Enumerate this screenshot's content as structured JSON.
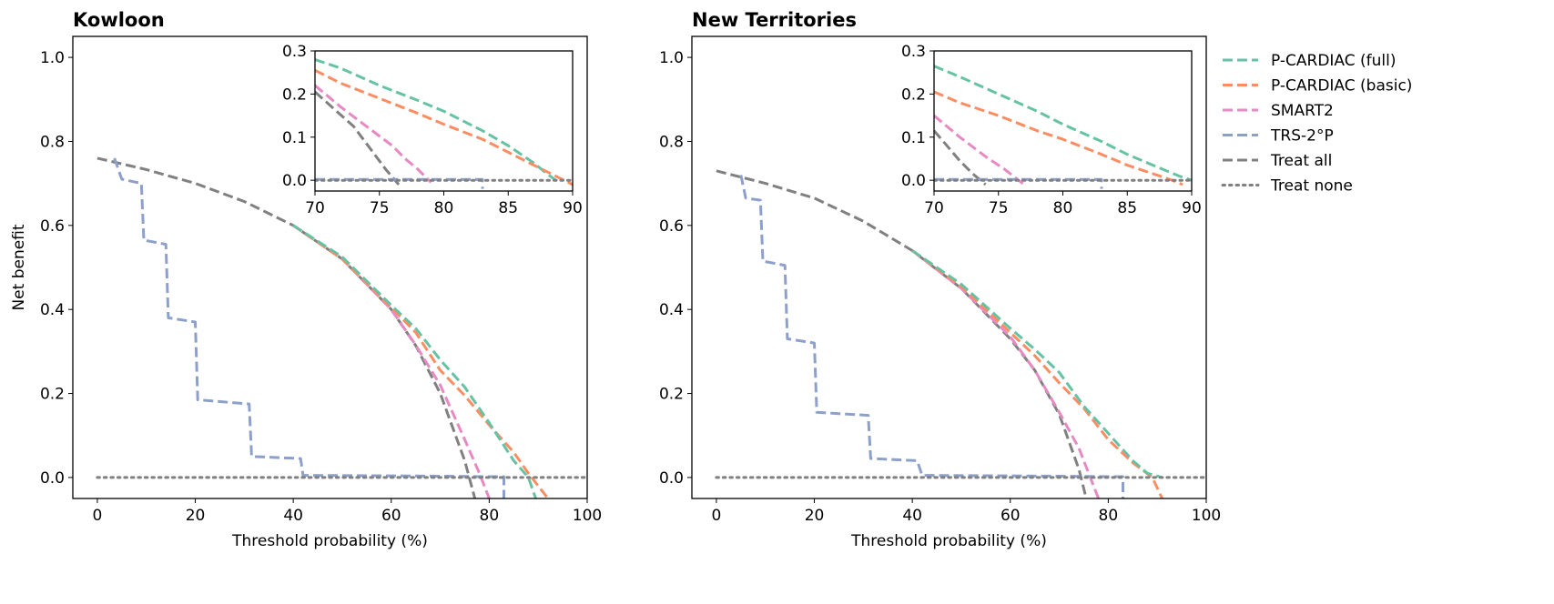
{
  "colors": {
    "p_cardiac_full": "#66c2a5",
    "p_cardiac_basic": "#fc8d62",
    "smart2": "#e78ac3",
    "trs": "#8da0cb",
    "treat_all": "#808080",
    "treat_none": "#808080"
  },
  "legend": {
    "placement": "right, outside, top",
    "items": [
      {
        "key": "p_cardiac_full",
        "label": "P-CARDIAC (full)",
        "style": "dashed"
      },
      {
        "key": "p_cardiac_basic",
        "label": "P-CARDIAC (basic)",
        "style": "dashed"
      },
      {
        "key": "smart2",
        "label": "SMART2",
        "style": "dashed"
      },
      {
        "key": "trs",
        "label": "TRS-2°P",
        "style": "dashed"
      },
      {
        "key": "treat_all",
        "label": "Treat all",
        "style": "dashed"
      },
      {
        "key": "treat_none",
        "label": "Treat none",
        "style": "dotted"
      }
    ]
  },
  "chart_data": [
    {
      "type": "line",
      "title": "Kowloon",
      "xlabel": "Threshold probability (%)",
      "ylabel": "Net benefit",
      "xlim": [
        -5,
        100
      ],
      "ylim": [
        -0.05,
        1.05
      ],
      "xticks": [
        0,
        20,
        40,
        60,
        80,
        100
      ],
      "yticks": [
        0.0,
        0.2,
        0.4,
        0.6,
        0.8,
        1.0
      ],
      "grid": false,
      "series": [
        {
          "key": "treat_all",
          "name": "Treat all",
          "x": [
            0,
            10,
            20,
            30,
            40,
            50,
            60,
            65,
            70,
            75,
            78
          ],
          "y": [
            0.76,
            0.733,
            0.7,
            0.657,
            0.6,
            0.52,
            0.4,
            0.314,
            0.2,
            0.04,
            -0.09
          ]
        },
        {
          "key": "smart2",
          "name": "SMART2",
          "x": [
            40,
            50,
            60,
            65,
            70,
            75,
            78,
            80
          ],
          "y": [
            0.6,
            0.52,
            0.4,
            0.315,
            0.22,
            0.09,
            0.01,
            -0.05
          ]
        },
        {
          "key": "p_cardiac_basic",
          "name": "P-CARDIAC (basic)",
          "x": [
            40,
            50,
            60,
            65,
            70,
            75,
            80,
            85,
            88,
            92
          ],
          "y": [
            0.6,
            0.52,
            0.405,
            0.345,
            0.255,
            0.195,
            0.125,
            0.06,
            0.01,
            -0.05
          ]
        },
        {
          "key": "p_cardiac_full",
          "name": "P-CARDIAC (full)",
          "x": [
            40,
            50,
            60,
            65,
            70,
            75,
            80,
            85,
            88,
            89.5
          ],
          "y": [
            0.6,
            0.525,
            0.41,
            0.355,
            0.28,
            0.215,
            0.13,
            0.04,
            0.0,
            -0.05
          ]
        },
        {
          "key": "trs",
          "name": "TRS-2°P",
          "x": [
            3.5,
            5,
            9,
            9.5,
            14,
            14.5,
            20,
            20.5,
            31,
            31.5,
            41.5,
            42,
            60,
            70,
            80,
            83,
            83,
            83
          ],
          "y": [
            0.76,
            0.71,
            0.7,
            0.565,
            0.555,
            0.38,
            0.37,
            0.185,
            0.175,
            0.05,
            0.045,
            0.005,
            0.004,
            0.003,
            0.002,
            0.002,
            0.0,
            -0.05
          ]
        },
        {
          "key": "treat_none",
          "name": "Treat none",
          "x": [
            0,
            100
          ],
          "y": [
            0,
            0
          ]
        }
      ],
      "inset": {
        "xlim": [
          70,
          90
        ],
        "ylim": [
          -0.025,
          0.3
        ],
        "xticks": [
          70,
          75,
          80,
          85,
          90
        ],
        "yticks": [
          0.0,
          0.1,
          0.2,
          0.3
        ],
        "series": [
          {
            "key": "p_cardiac_full",
            "x": [
              70,
              72,
              75,
              78,
              80,
              83,
              85,
              87,
              88,
              88.7
            ],
            "y": [
              0.28,
              0.26,
              0.22,
              0.185,
              0.16,
              0.115,
              0.08,
              0.04,
              0.015,
              0.0
            ]
          },
          {
            "key": "p_cardiac_basic",
            "x": [
              70,
              72,
              75,
              78,
              80,
              83,
              85,
              87,
              89,
              90
            ],
            "y": [
              0.255,
              0.225,
              0.19,
              0.155,
              0.13,
              0.095,
              0.065,
              0.035,
              0.005,
              -0.01
            ]
          },
          {
            "key": "smart2",
            "x": [
              70,
              72,
              74,
              76,
              77,
              78,
              79
            ],
            "y": [
              0.22,
              0.17,
              0.125,
              0.08,
              0.05,
              0.025,
              -0.005
            ]
          },
          {
            "key": "treat_all",
            "x": [
              70,
              71.5,
              73,
              74.5,
              75.5,
              76.5
            ],
            "y": [
              0.205,
              0.165,
              0.125,
              0.065,
              0.025,
              -0.01
            ]
          },
          {
            "key": "trs",
            "x": [
              70,
              83,
              83
            ],
            "y": [
              0.002,
              0.002,
              -0.02
            ]
          },
          {
            "key": "treat_none",
            "x": [
              70,
              90
            ],
            "y": [
              0,
              0
            ]
          }
        ]
      }
    },
    {
      "type": "line",
      "title": "New Territories",
      "xlabel": "Threshold probability (%)",
      "ylabel": "",
      "xlim": [
        -5,
        100
      ],
      "ylim": [
        -0.05,
        1.05
      ],
      "xticks": [
        0,
        20,
        40,
        60,
        80,
        100
      ],
      "yticks": [
        0.0,
        0.2,
        0.4,
        0.6,
        0.8,
        1.0
      ],
      "grid": false,
      "series": [
        {
          "key": "treat_all",
          "name": "Treat all",
          "x": [
            0,
            10,
            20,
            30,
            40,
            50,
            60,
            65,
            70,
            74,
            75.5
          ],
          "y": [
            0.73,
            0.7,
            0.665,
            0.61,
            0.54,
            0.45,
            0.33,
            0.255,
            0.15,
            0.02,
            -0.05
          ]
        },
        {
          "key": "smart2",
          "name": "SMART2",
          "x": [
            40,
            50,
            60,
            65,
            70,
            74,
            78
          ],
          "y": [
            0.54,
            0.45,
            0.335,
            0.255,
            0.155,
            0.07,
            -0.05
          ]
        },
        {
          "key": "p_cardiac_basic",
          "name": "P-CARDIAC (basic)",
          "x": [
            40,
            50,
            60,
            65,
            70,
            75,
            80,
            85,
            89,
            91
          ],
          "y": [
            0.54,
            0.455,
            0.345,
            0.29,
            0.225,
            0.165,
            0.09,
            0.035,
            0.0,
            -0.05
          ]
        },
        {
          "key": "p_cardiac_full",
          "name": "P-CARDIAC (full)",
          "x": [
            40,
            50,
            60,
            65,
            70,
            75,
            80,
            85,
            88,
            91
          ],
          "y": [
            0.54,
            0.46,
            0.355,
            0.305,
            0.25,
            0.17,
            0.105,
            0.04,
            0.01,
            0.0
          ]
        },
        {
          "key": "trs",
          "name": "TRS-2°P",
          "x": [
            5,
            6,
            9,
            9.5,
            14,
            14.5,
            20,
            20.5,
            31,
            31.5,
            41,
            42,
            60,
            70,
            80,
            83,
            83,
            83
          ],
          "y": [
            0.72,
            0.665,
            0.66,
            0.515,
            0.505,
            0.33,
            0.32,
            0.155,
            0.148,
            0.045,
            0.04,
            0.005,
            0.004,
            0.003,
            0.002,
            0.002,
            0.0,
            -0.05
          ]
        },
        {
          "key": "treat_none",
          "name": "Treat none",
          "x": [
            0,
            100
          ],
          "y": [
            0,
            0
          ]
        }
      ],
      "inset": {
        "xlim": [
          70,
          90
        ],
        "ylim": [
          -0.025,
          0.3
        ],
        "xticks": [
          70,
          75,
          80,
          85,
          90
        ],
        "yticks": [
          0.0,
          0.1,
          0.2,
          0.3
        ],
        "series": [
          {
            "key": "p_cardiac_full",
            "x": [
              70,
              72,
              75,
              78,
              80,
              83,
              85,
              87,
              89,
              90
            ],
            "y": [
              0.265,
              0.24,
              0.2,
              0.16,
              0.13,
              0.09,
              0.06,
              0.035,
              0.01,
              0.0
            ]
          },
          {
            "key": "p_cardiac_basic",
            "x": [
              70,
              72,
              75,
              78,
              80,
              83,
              85,
              87,
              88.5,
              89.3
            ],
            "y": [
              0.205,
              0.18,
              0.15,
              0.115,
              0.095,
              0.06,
              0.035,
              0.015,
              0.0,
              -0.01
            ]
          },
          {
            "key": "smart2",
            "x": [
              70,
              72,
              74,
              75.5,
              77
            ],
            "y": [
              0.15,
              0.1,
              0.055,
              0.025,
              -0.01
            ]
          },
          {
            "key": "treat_all",
            "x": [
              70,
              71,
              72,
              73,
              74
            ],
            "y": [
              0.115,
              0.08,
              0.045,
              0.015,
              -0.01
            ]
          },
          {
            "key": "trs",
            "x": [
              70,
              83,
              83
            ],
            "y": [
              0.002,
              0.002,
              -0.02
            ]
          },
          {
            "key": "treat_none",
            "x": [
              70,
              90
            ],
            "y": [
              0,
              0
            ]
          }
        ]
      }
    }
  ]
}
